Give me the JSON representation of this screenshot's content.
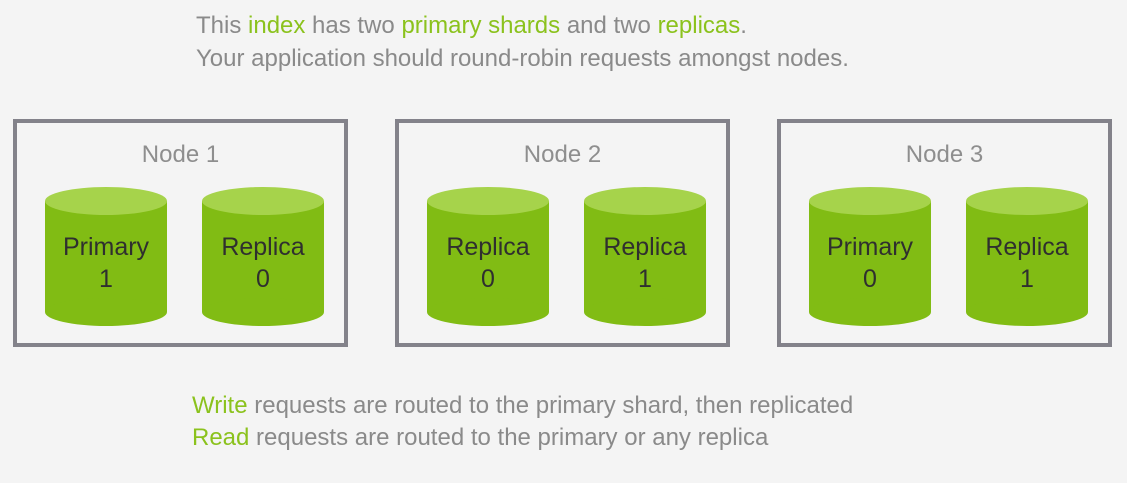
{
  "header": {
    "line1": {
      "t1": "This ",
      "hl1": "index",
      "t2": " has two ",
      "hl2": "primary shards",
      "t3": " and two ",
      "hl3": "replicas",
      "t4": "."
    },
    "line2": "Your application should round-robin requests amongst nodes."
  },
  "nodes": [
    {
      "title": "Node 1",
      "shards": [
        {
          "type": "Primary",
          "number": "1"
        },
        {
          "type": "Replica",
          "number": "0"
        }
      ]
    },
    {
      "title": "Node 2",
      "shards": [
        {
          "type": "Replica",
          "number": "0"
        },
        {
          "type": "Replica",
          "number": "1"
        }
      ]
    },
    {
      "title": "Node 3",
      "shards": [
        {
          "type": "Primary",
          "number": "0"
        },
        {
          "type": "Replica",
          "number": "1"
        }
      ]
    }
  ],
  "footer": {
    "write_hl": "Write",
    "write_rest": " requests are routed to the primary shard, then replicated",
    "read_hl": "Read",
    "read_rest": " requests are routed to the primary or any replica"
  },
  "colors": {
    "accent": "#8bc21d",
    "cylinder_body": "#81bc14",
    "cylinder_top": "#a6d34b",
    "node_border": "#83828a",
    "text_gray": "#8a8a8a"
  }
}
